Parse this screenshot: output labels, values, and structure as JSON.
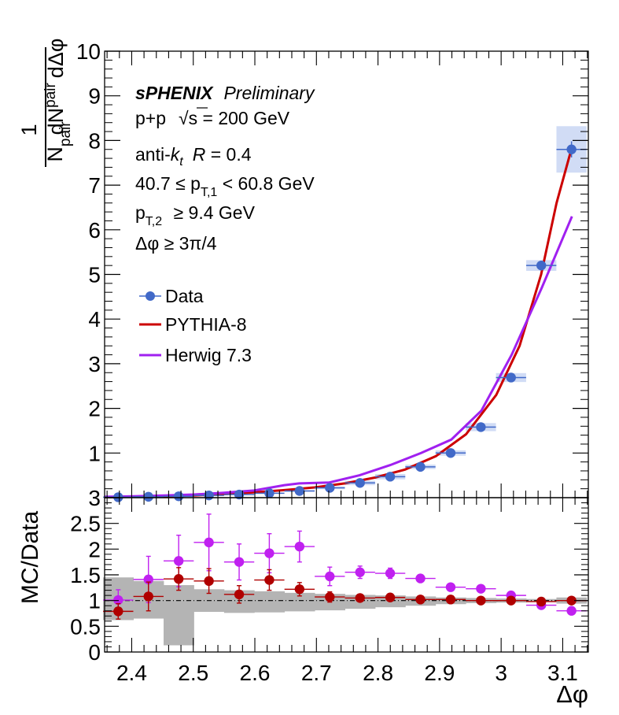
{
  "chart_data": [
    {
      "type": "scatter",
      "panel": "main",
      "x": [
        2.3781,
        2.4272,
        2.4763,
        2.5254,
        2.5745,
        2.6235,
        2.6726,
        2.7217,
        2.7708,
        2.8198,
        2.8689,
        2.918,
        2.9671,
        3.0161,
        3.0652,
        3.1143
      ],
      "xerr": 0.0245,
      "xlim": [
        2.356,
        3.1416
      ],
      "ylim": [
        0,
        10
      ],
      "yticks": [
        0,
        1,
        2,
        3,
        4,
        5,
        6,
        7,
        8,
        9,
        10
      ],
      "ytick_labels": [
        "",
        "1",
        "2",
        "3",
        "4",
        "5",
        "6",
        "7",
        "8",
        "9",
        "10"
      ],
      "series": [
        {
          "name": "Data",
          "kind": "points",
          "color": "#4169c8",
          "values": [
            0.01,
            0.02,
            0.03,
            0.05,
            0.07,
            0.1,
            0.15,
            0.22,
            0.33,
            0.47,
            0.69,
            1.0,
            1.58,
            2.69,
            5.2,
            7.8
          ],
          "stat_err": [
            0.01,
            0.01,
            0.01,
            0.01,
            0.01,
            0.01,
            0.02,
            0.02,
            0.02,
            0.03,
            0.03,
            0.04,
            0.05,
            0.07,
            0.11,
            0.18
          ],
          "sys_err": [
            0.005,
            0.005,
            0.005,
            0.008,
            0.01,
            0.015,
            0.02,
            0.03,
            0.05,
            0.06,
            0.05,
            0.06,
            0.09,
            0.1,
            0.12,
            0.52
          ]
        },
        {
          "name": "PYTHIA-8",
          "kind": "line",
          "color": "#cc0000",
          "x": [
            2.356,
            2.403,
            2.452,
            2.501,
            2.55,
            2.599,
            2.648,
            2.697,
            2.746,
            2.795,
            2.844,
            2.894,
            2.943,
            2.992,
            3.03,
            3.065,
            3.09,
            3.114
          ],
          "values": [
            0.01,
            0.02,
            0.03,
            0.05,
            0.08,
            0.12,
            0.17,
            0.23,
            0.32,
            0.45,
            0.63,
            0.93,
            1.42,
            2.3,
            3.4,
            5.0,
            6.6,
            7.8
          ]
        },
        {
          "name": "Herwig 7.3",
          "kind": "line",
          "color": "#a020f0",
          "x": [
            2.356,
            2.403,
            2.452,
            2.501,
            2.55,
            2.599,
            2.648,
            2.672,
            2.721,
            2.77,
            2.82,
            2.87,
            2.919,
            2.968,
            3.017,
            3.066,
            3.115
          ],
          "values": [
            0.02,
            0.03,
            0.05,
            0.07,
            0.11,
            0.16,
            0.28,
            0.32,
            0.34,
            0.5,
            0.73,
            1.0,
            1.3,
            1.95,
            3.2,
            4.7,
            6.3
          ]
        }
      ],
      "annotations": {
        "experiment": "sPHENIX",
        "status": "Preliminary",
        "system_prefix": "p+p",
        "energy": "s = 200 GeV",
        "algo_prefix": "anti-",
        "algo_k": "k",
        "algo_sub": "t",
        "algo_r": "R",
        "algo_rval": " = 0.4",
        "pt1_pre": "40.7 ≤ p",
        "pt1_sub": "T,1",
        "pt1_post": " < 60.8 GeV",
        "pt2_pre": "p",
        "pt2_sub": "T,2",
        "pt2_post": " ≥ 9.4 GeV",
        "dphi_cut": "Δφ ≥ 3π/4"
      },
      "ylabel": {
        "num_pre": "dN",
        "num_sub": "pair",
        "num_post": "dΔφ",
        "one": "1",
        "den_pre": "N",
        "den_sub": "pair"
      }
    },
    {
      "type": "scatter",
      "panel": "ratio",
      "x": [
        2.3781,
        2.4272,
        2.4763,
        2.5254,
        2.5745,
        2.6235,
        2.6726,
        2.7217,
        2.7708,
        2.8198,
        2.8689,
        2.918,
        2.9671,
        3.0161,
        3.0652,
        3.1143
      ],
      "xerr": 0.0245,
      "xlim": [
        2.356,
        3.1416
      ],
      "ylim": [
        0,
        3
      ],
      "yticks": [
        0,
        0.5,
        1,
        1.5,
        2,
        2.5,
        3
      ],
      "ytick_labels": [
        "0",
        "0.5",
        "1",
        "1.5",
        "2",
        "2.5",
        "3"
      ],
      "xticks": [
        2.4,
        2.5,
        2.6,
        2.7,
        2.8,
        2.9,
        3.0,
        3.1
      ],
      "xtick_labels": [
        "2.4",
        "2.5",
        "2.6",
        "2.7",
        "2.8",
        "2.9",
        "3",
        "3.1"
      ],
      "xlabel": "Δφ",
      "ylabel": "MC/Data",
      "reference_line": 1,
      "uncertainty_band": {
        "color": "#b4b4b4",
        "low": [
          0.62,
          0.65,
          0.13,
          0.78,
          0.76,
          0.77,
          0.79,
          0.81,
          0.84,
          0.87,
          0.9,
          0.93,
          0.95,
          0.96,
          0.97,
          0.94
        ],
        "high": [
          1.45,
          1.38,
          1.3,
          1.22,
          1.2,
          1.18,
          1.15,
          1.13,
          1.11,
          1.1,
          1.08,
          1.06,
          1.05,
          1.04,
          1.03,
          1.06
        ]
      },
      "series": [
        {
          "name": "PYTHIA-8",
          "color": "#b00000",
          "values": [
            0.79,
            1.08,
            1.42,
            1.38,
            1.12,
            1.4,
            1.22,
            1.07,
            1.05,
            1.06,
            1.02,
            1.02,
            1.0,
            1.0,
            0.98,
            1.0
          ],
          "err": [
            0.15,
            0.28,
            0.22,
            0.24,
            0.17,
            0.2,
            0.13,
            0.1,
            0.07,
            0.07,
            0.05,
            0.04,
            0.03,
            0.03,
            0.03,
            0.03
          ]
        },
        {
          "name": "Herwig 7.3",
          "color": "#c020f0",
          "values": [
            1.01,
            1.41,
            1.77,
            2.13,
            1.75,
            1.92,
            2.05,
            1.47,
            1.55,
            1.53,
            1.43,
            1.26,
            1.23,
            1.1,
            0.91,
            0.8
          ],
          "err": [
            0.2,
            0.45,
            0.5,
            0.55,
            0.35,
            0.38,
            0.3,
            0.18,
            0.12,
            0.1,
            0.07,
            0.05,
            0.04,
            0.04,
            0.03,
            0.03
          ]
        }
      ]
    }
  ]
}
